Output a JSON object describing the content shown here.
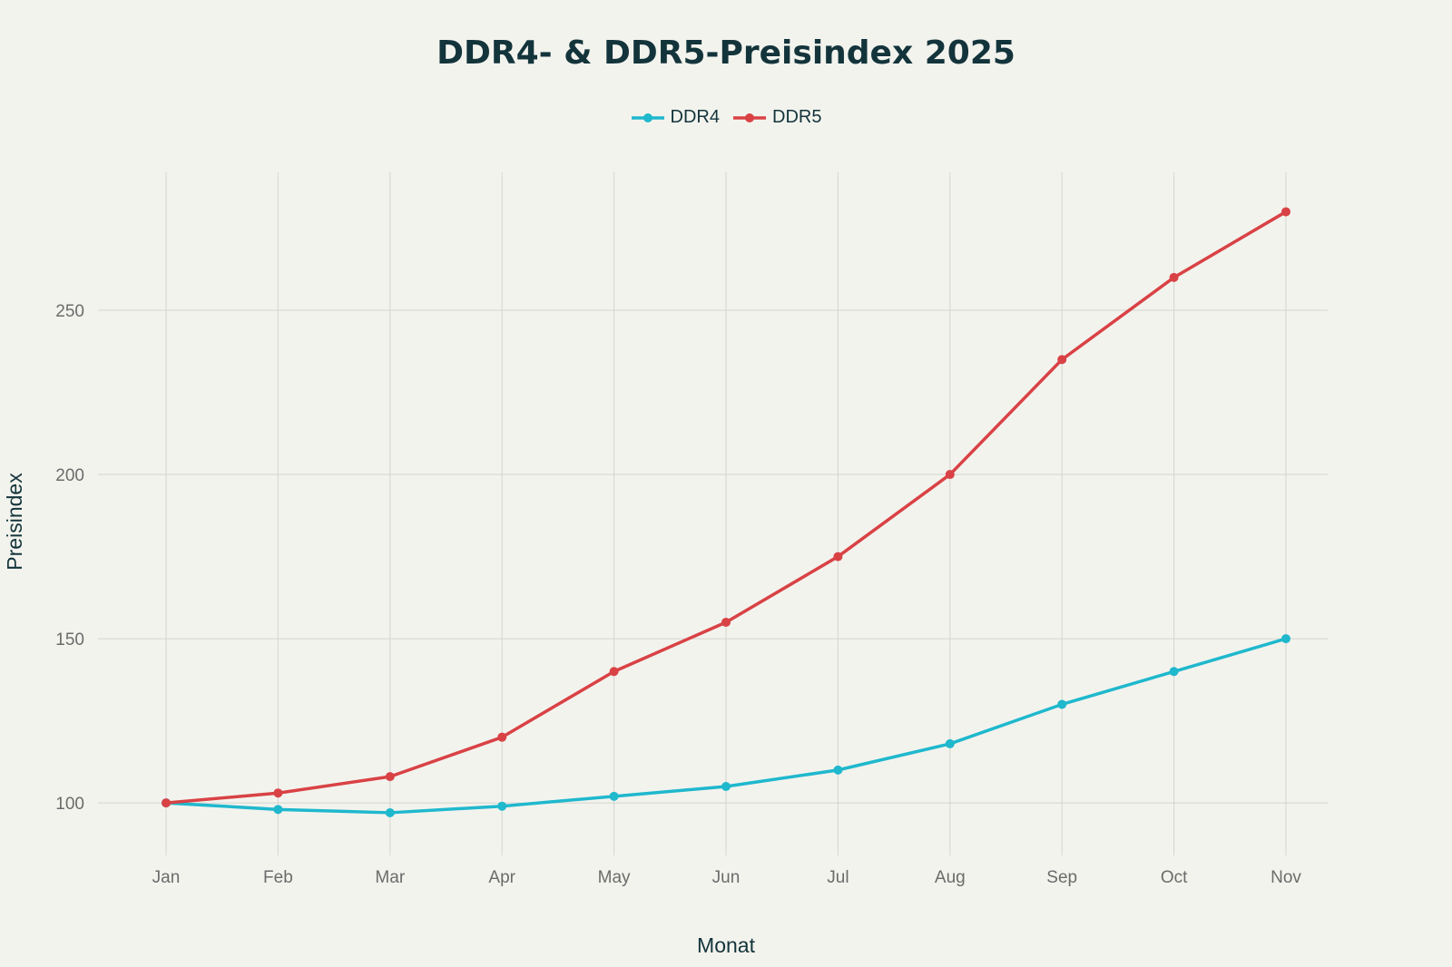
{
  "chart_data": {
    "type": "line",
    "title": "DDR4- & DDR5-Preisindex 2025",
    "xlabel": "Monat",
    "ylabel": "Preisindex",
    "categories": [
      "Jan",
      "Feb",
      "Mar",
      "Apr",
      "May",
      "Jun",
      "Jul",
      "Aug",
      "Sep",
      "Oct",
      "Nov"
    ],
    "series": [
      {
        "name": "DDR4",
        "color": "#1fb8cd",
        "values": [
          100,
          98,
          97,
          99,
          102,
          105,
          110,
          118,
          130,
          140,
          150
        ]
      },
      {
        "name": "DDR5",
        "color": "#d94245",
        "values": [
          100,
          103,
          108,
          120,
          140,
          155,
          175,
          200,
          235,
          260,
          280
        ]
      }
    ],
    "yticks": [
      100,
      150,
      200,
      250
    ],
    "ylim": [
      84,
      292
    ],
    "grid": true,
    "legend_position": "top-center"
  }
}
